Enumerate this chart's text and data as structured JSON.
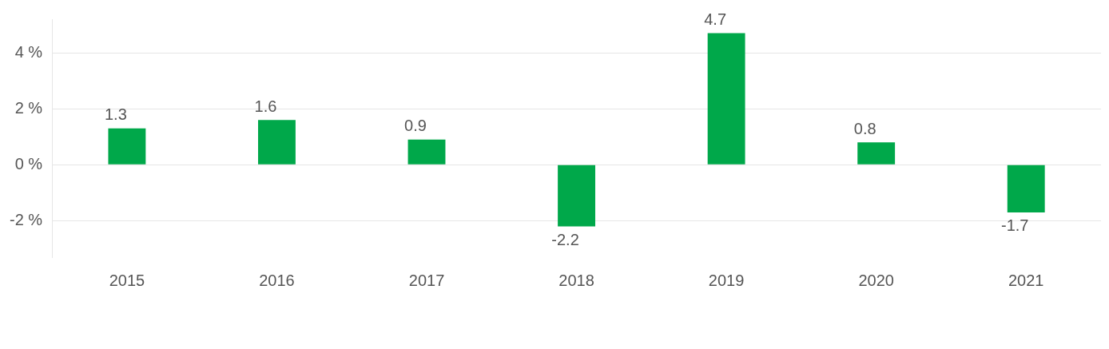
{
  "chart_data": {
    "type": "bar",
    "categories": [
      "2015",
      "2016",
      "2017",
      "2018",
      "2019",
      "2020",
      "2021"
    ],
    "values": [
      1.3,
      1.6,
      0.9,
      -2.2,
      4.7,
      0.8,
      -1.7
    ],
    "color": "#00a84a",
    "ylim": [
      -3.3,
      5.2
    ],
    "yticks": [
      {
        "value": -2,
        "label": "-2 %"
      },
      {
        "value": 0,
        "label": "0 %"
      },
      {
        "value": 2,
        "label": "2 %"
      },
      {
        "value": 4,
        "label": "4 %"
      }
    ],
    "grid": "y",
    "data_labels": true,
    "legend": false
  }
}
